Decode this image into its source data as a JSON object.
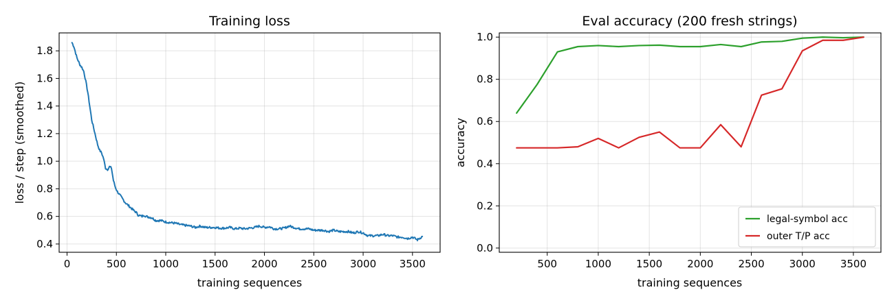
{
  "chart_data": [
    {
      "type": "line",
      "title": "Training loss",
      "xlabel": "training sequences",
      "ylabel": "loss / step (smoothed)",
      "xlim": [
        -80,
        3780
      ],
      "ylim": [
        0.34,
        1.93
      ],
      "xticks": [
        0,
        500,
        1000,
        1500,
        2000,
        2500,
        3000,
        3500
      ],
      "yticks": [
        0.4,
        0.6,
        0.8,
        1.0,
        1.2,
        1.4,
        1.6,
        1.8
      ],
      "ytick_format": "1",
      "grid": true,
      "series": [
        {
          "name": "",
          "color": "#1f77b4",
          "noise": 0.008,
          "x": [
            50,
            70,
            100,
            130,
            150,
            170,
            190,
            210,
            230,
            250,
            270,
            290,
            310,
            330,
            350,
            370,
            390,
            410,
            430,
            450,
            470,
            490,
            510,
            530,
            560,
            590,
            620,
            650,
            680,
            700,
            720,
            740,
            760,
            780,
            800,
            830,
            860,
            900,
            950,
            1000,
            1050,
            1100,
            1150,
            1200,
            1250,
            1300,
            1350,
            1400,
            1450,
            1500,
            1550,
            1600,
            1650,
            1700,
            1750,
            1800,
            1850,
            1900,
            1950,
            2000,
            2050,
            2100,
            2150,
            2200,
            2250,
            2300,
            2350,
            2400,
            2450,
            2500,
            2550,
            2600,
            2650,
            2700,
            2750,
            2800,
            2850,
            2900,
            2950,
            3000,
            3050,
            3100,
            3150,
            3200,
            3250,
            3300,
            3350,
            3400,
            3450,
            3500,
            3550,
            3600
          ],
          "y": [
            1.86,
            1.83,
            1.75,
            1.7,
            1.68,
            1.65,
            1.58,
            1.5,
            1.4,
            1.3,
            1.24,
            1.18,
            1.12,
            1.08,
            1.06,
            1.02,
            0.95,
            0.94,
            0.96,
            0.95,
            0.86,
            0.81,
            0.78,
            0.76,
            0.73,
            0.7,
            0.68,
            0.66,
            0.64,
            0.63,
            0.61,
            0.605,
            0.6,
            0.61,
            0.6,
            0.595,
            0.59,
            0.57,
            0.57,
            0.56,
            0.555,
            0.55,
            0.54,
            0.535,
            0.53,
            0.52,
            0.53,
            0.52,
            0.52,
            0.52,
            0.515,
            0.515,
            0.52,
            0.51,
            0.515,
            0.51,
            0.515,
            0.52,
            0.53,
            0.52,
            0.525,
            0.51,
            0.51,
            0.515,
            0.53,
            0.52,
            0.51,
            0.51,
            0.51,
            0.5,
            0.5,
            0.5,
            0.49,
            0.5,
            0.49,
            0.49,
            0.49,
            0.48,
            0.49,
            0.48,
            0.46,
            0.46,
            0.46,
            0.47,
            0.46,
            0.46,
            0.45,
            0.45,
            0.44,
            0.45,
            0.43,
            0.455
          ]
        }
      ]
    },
    {
      "type": "line",
      "title": "Eval accuracy (200 fresh strings)",
      "xlabel": "training sequences",
      "ylabel": "accuracy",
      "xlim": [
        30,
        3770
      ],
      "ylim": [
        -0.02,
        1.02
      ],
      "xticks": [
        500,
        1000,
        1500,
        2000,
        2500,
        3000,
        3500
      ],
      "yticks": [
        0.0,
        0.2,
        0.4,
        0.6,
        0.8,
        1.0
      ],
      "ytick_format": "1",
      "grid": true,
      "legend_position": "bottom-right",
      "series": [
        {
          "name": "legal-symbol acc",
          "color": "#2ca02c",
          "x": [
            200,
            400,
            600,
            800,
            1000,
            1200,
            1400,
            1600,
            1800,
            2000,
            2200,
            2400,
            2600,
            2800,
            3000,
            3200,
            3400,
            3600
          ],
          "y": [
            0.64,
            0.775,
            0.93,
            0.955,
            0.96,
            0.955,
            0.96,
            0.962,
            0.955,
            0.955,
            0.965,
            0.955,
            0.977,
            0.98,
            0.995,
            1.0,
            0.997,
            1.0
          ]
        },
        {
          "name": "outer T/P acc",
          "color": "#d62728",
          "x": [
            200,
            400,
            600,
            800,
            1000,
            1200,
            1400,
            1600,
            1800,
            2000,
            2200,
            2400,
            2600,
            2800,
            3000,
            3200,
            3400,
            3600
          ],
          "y": [
            0.475,
            0.475,
            0.475,
            0.48,
            0.52,
            0.475,
            0.525,
            0.55,
            0.475,
            0.475,
            0.585,
            0.48,
            0.725,
            0.755,
            0.935,
            0.985,
            0.985,
            1.0
          ]
        }
      ]
    }
  ]
}
